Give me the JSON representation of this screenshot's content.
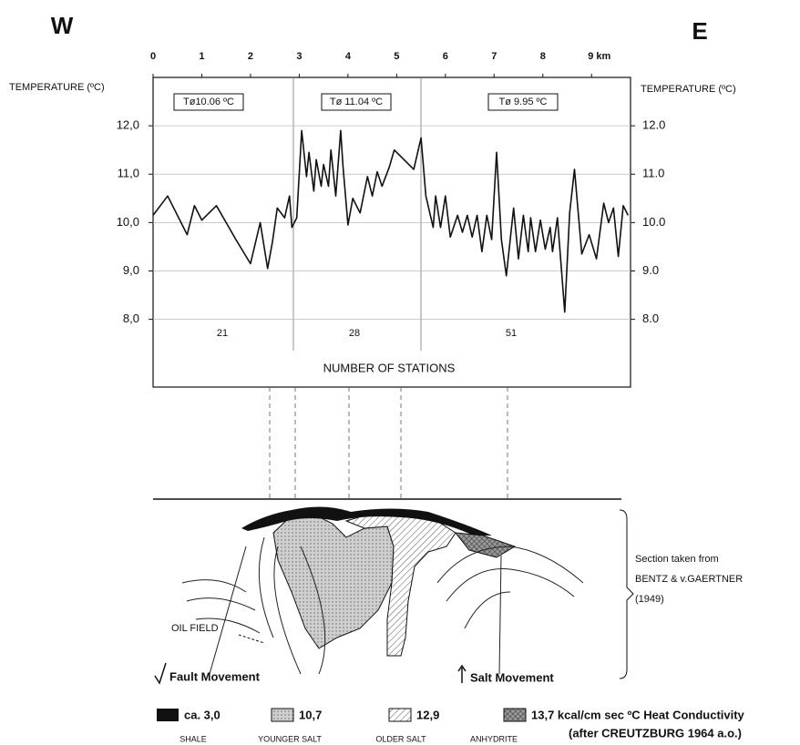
{
  "chart_data": {
    "type": "line",
    "compass_west": "W",
    "compass_east": "E",
    "ylabel": "TEMPERATURE (ºC)",
    "y2label": "TEMPERATURE (ºC)",
    "xlim": [
      0,
      9.8
    ],
    "xticks": [
      0,
      1,
      2,
      3,
      4,
      5,
      6,
      7,
      8,
      {
        "value": 9,
        "label": "9 km"
      }
    ],
    "ylim": [
      6.6,
      13.0
    ],
    "yticks": [
      {
        "value": 8,
        "label": "8,0"
      },
      {
        "value": 9,
        "label": "9,0"
      },
      {
        "value": 10,
        "label": "10,0"
      },
      {
        "value": 11,
        "label": "11,0"
      },
      {
        "value": 12,
        "label": "12,0"
      }
    ],
    "y2lim": [
      6.6,
      13.0
    ],
    "y2ticks": [
      {
        "value": 8,
        "label": "8.0"
      },
      {
        "value": 9,
        "label": "9.0"
      },
      {
        "value": 10,
        "label": "10.0"
      },
      {
        "value": 11,
        "label": "11.0"
      },
      {
        "value": 12,
        "label": "12.0"
      }
    ],
    "grid": true,
    "annotations": [
      "Tø10.06 ºC",
      "Tø 11.04 ºC",
      "Tø 9.95 ºC"
    ],
    "station_counts": [
      "21",
      "28",
      "51"
    ],
    "station_label": "NUMBER OF STATIONS",
    "x": [
      0,
      0.3,
      0.7,
      0.85,
      1.0,
      1.3,
      1.5,
      1.7,
      2.0,
      2.2,
      2.35,
      2.45,
      2.55,
      2.7,
      2.8,
      2.85,
      2.95,
      3.05,
      3.15,
      3.2,
      3.3,
      3.35,
      3.45,
      3.5,
      3.6,
      3.65,
      3.75,
      3.85,
      3.9,
      4.0,
      4.1,
      4.25,
      4.4,
      4.5,
      4.6,
      4.7,
      4.85,
      4.95,
      5.15,
      5.35,
      5.5,
      5.6,
      5.75,
      5.8,
      5.9,
      6.0,
      6.1,
      6.25,
      6.35,
      6.45,
      6.55,
      6.65,
      6.75,
      6.85,
      6.95,
      7.05,
      7.15,
      7.25,
      7.4,
      7.5,
      7.6,
      7.7,
      7.75,
      7.85,
      7.95,
      8.05,
      8.15,
      8.2,
      8.3,
      8.45,
      8.55,
      8.65,
      8.8,
      8.95,
      9.1,
      9.25,
      9.35,
      9.45,
      9.55,
      9.65,
      9.75
    ],
    "series": [
      {
        "color": "#111111",
        "values": [
          10.15,
          10.55,
          9.75,
          10.35,
          10.05,
          10.35,
          10.0,
          9.65,
          9.15,
          10.0,
          9.05,
          9.6,
          10.3,
          10.1,
          10.55,
          9.9,
          10.1,
          11.9,
          10.95,
          11.45,
          10.65,
          11.3,
          10.75,
          11.2,
          10.75,
          11.5,
          10.55,
          11.9,
          11.15,
          9.95,
          10.5,
          10.2,
          10.95,
          10.55,
          11.05,
          10.75,
          11.15,
          11.5,
          11.3,
          11.1,
          11.75,
          10.55,
          9.9,
          10.55,
          9.9,
          10.55,
          9.7,
          10.15,
          9.8,
          10.15,
          9.7,
          10.15,
          9.4,
          10.15,
          9.65,
          11.45,
          9.65,
          8.9,
          10.3,
          9.25,
          10.15,
          9.4,
          10.1,
          9.4,
          10.05,
          9.45,
          9.9,
          9.4,
          10.1,
          8.15,
          10.2,
          11.1,
          9.35,
          9.75,
          9.25,
          10.4,
          10.0,
          10.3,
          9.3,
          10.35,
          10.15
        ]
      }
    ]
  },
  "section": {
    "source": [
      "Section taken from",
      "BENTZ & v.GAERTNER",
      "(1949)"
    ],
    "oil_field": "OIL FIELD",
    "fault": "Fault Movement",
    "salt": "Salt Movement"
  },
  "legend": {
    "items": [
      {
        "value": "ca. 3,0",
        "material": "SHALE"
      },
      {
        "value": "10,7",
        "material": "YOUNGER SALT"
      },
      {
        "value": "12,9",
        "material": "OLDER SALT"
      },
      {
        "value": "13,7 kcal/cm sec ºC Heat Conductivity",
        "material": "ANHYDRITE"
      }
    ],
    "source": "(after CREUTZBURG 1964 a.o.)"
  }
}
